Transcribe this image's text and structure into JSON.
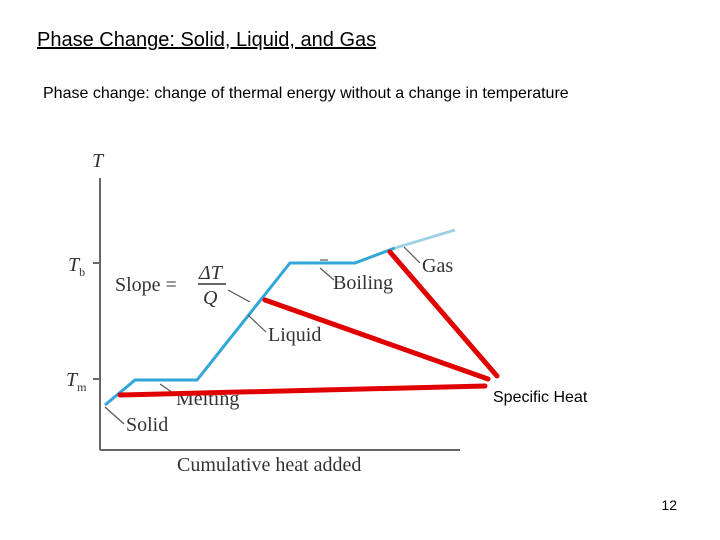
{
  "header": {
    "title": "Phase Change: Solid, Liquid, and Gas",
    "subtitle": "Phase change: change of thermal energy without a change in temperature"
  },
  "diagram": {
    "y_axis": "T",
    "boiling_temp": {
      "symbol": "T",
      "subscript": "b"
    },
    "melting_temp": {
      "symbol": "T",
      "subscript": "m"
    },
    "slope": {
      "label": "Slope =",
      "numerator": "ΔT",
      "denominator": "Q"
    },
    "labels": {
      "solid": "Solid",
      "melting": "Melting",
      "liquid": "Liquid",
      "boiling": "Boiling",
      "gas": "Gas"
    },
    "x_axis": "Cumulative heat added",
    "annotation": "Specific Heat"
  },
  "footer": {
    "page_number": 12
  }
}
